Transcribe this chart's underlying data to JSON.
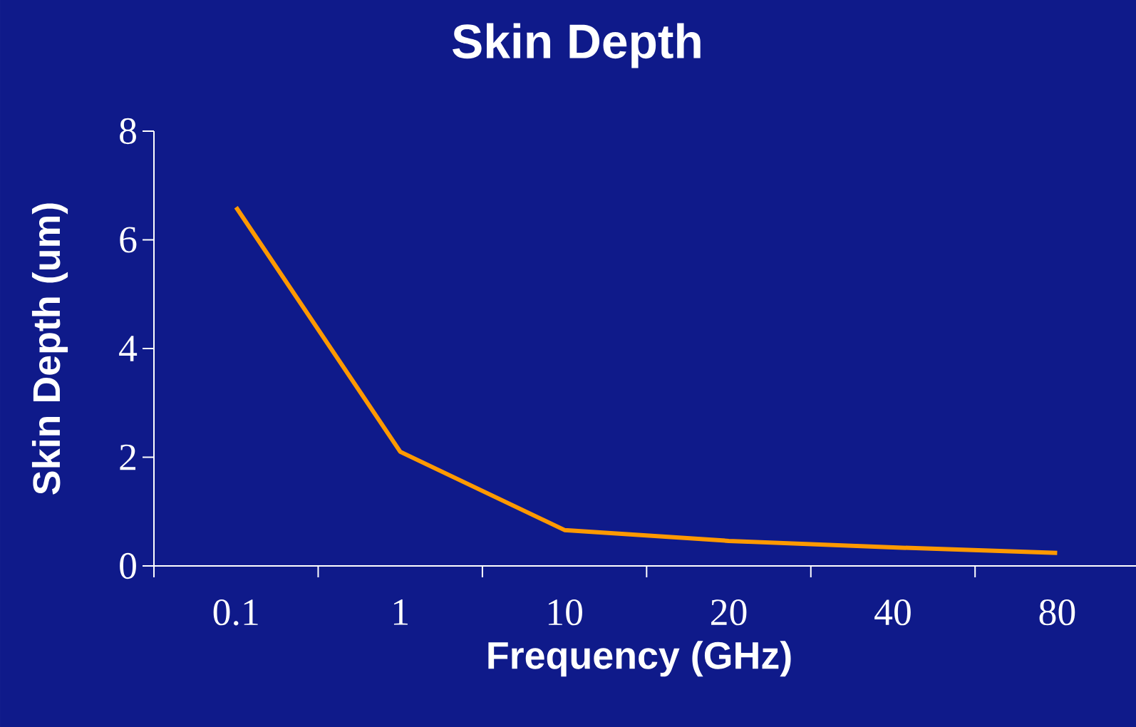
{
  "chart_data": {
    "type": "line",
    "title": "Skin Depth",
    "xlabel": "Frequency (GHz)",
    "ylabel": "Skin Depth (um)",
    "categories": [
      "0.1",
      "1",
      "10",
      "20",
      "40",
      "80"
    ],
    "series": [
      {
        "color": "#ff9900",
        "values": [
          6.6,
          2.1,
          0.66,
          0.46,
          0.34,
          0.24
        ]
      }
    ],
    "ylim": [
      0,
      8
    ],
    "yticks": [
      0,
      2,
      4,
      6,
      8
    ],
    "grid": false,
    "marker": "none",
    "line_style": "solid"
  }
}
